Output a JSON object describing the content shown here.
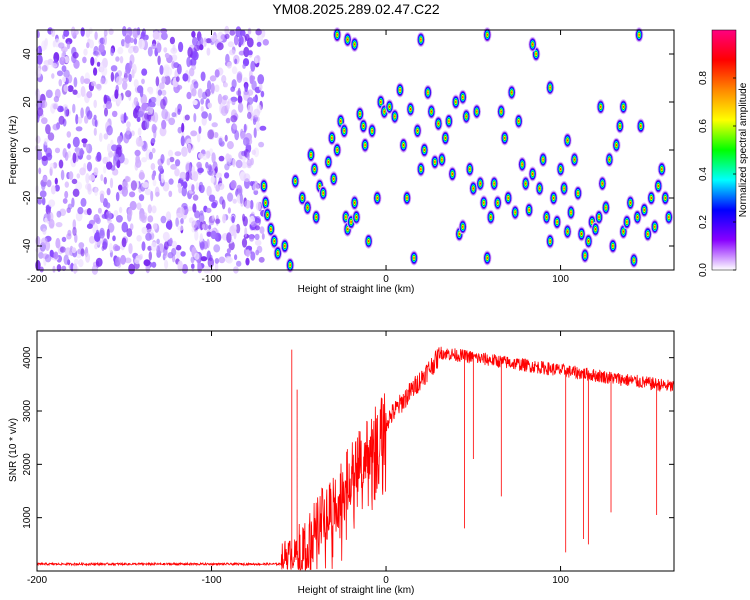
{
  "title": "YM08.2025.289.02.47.C22",
  "chart_data": [
    {
      "type": "heatmap",
      "xlabel": "Height of straight line (km)",
      "ylabel": "Frequency (Hz)",
      "xlim": [
        -200,
        165
      ],
      "ylim": [
        -50,
        50
      ],
      "xticks": [
        -200,
        -100,
        0,
        100
      ],
      "yticks": [
        -40,
        -20,
        0,
        20,
        40
      ],
      "colorbar": {
        "label": "Normalized spectral amplitude",
        "range": [
          0,
          1
        ],
        "ticks": [
          "0.0",
          "0.2",
          "0.4",
          "0.6",
          "0.8"
        ],
        "colors": [
          "#ffffff",
          "#8800ff",
          "#0000ff",
          "#00ffff",
          "#00ff00",
          "#ffff00",
          "#ff8800",
          "#ff0000",
          "#ff0080"
        ]
      },
      "noise_region": {
        "x_start": -200,
        "x_end": -72,
        "level": 0.15
      },
      "blobs": [
        [
          -70,
          -15
        ],
        [
          -69,
          -22
        ],
        [
          -68,
          -27
        ],
        [
          -66,
          -33
        ],
        [
          -64,
          -38
        ],
        [
          -62,
          -43
        ],
        [
          -58,
          -40
        ],
        [
          -55,
          -48
        ],
        [
          -52,
          -13
        ],
        [
          -48,
          -20
        ],
        [
          -45,
          -24
        ],
        [
          -43,
          -2
        ],
        [
          -41,
          -8
        ],
        [
          -40,
          -28
        ],
        [
          -38,
          -15
        ],
        [
          -36,
          -18
        ],
        [
          -33,
          -5
        ],
        [
          -31,
          5
        ],
        [
          -30,
          -12
        ],
        [
          -28,
          0
        ],
        [
          -26,
          12
        ],
        [
          -24,
          8
        ],
        [
          -23,
          -28
        ],
        [
          -22,
          -33
        ],
        [
          -20,
          -30
        ],
        [
          -18,
          -22
        ],
        [
          -17,
          -28
        ],
        [
          -15,
          15
        ],
        [
          -13,
          10
        ],
        [
          -12,
          2
        ],
        [
          -10,
          -38
        ],
        [
          -8,
          8
        ],
        [
          -5,
          -20
        ],
        [
          -3,
          20
        ],
        [
          -1,
          16
        ],
        [
          2,
          18
        ],
        [
          5,
          14
        ],
        [
          8,
          25
        ],
        [
          10,
          2
        ],
        [
          12,
          -20
        ],
        [
          14,
          17
        ],
        [
          16,
          -45
        ],
        [
          18,
          8
        ],
        [
          20,
          -8
        ],
        [
          22,
          0
        ],
        [
          24,
          24
        ],
        [
          26,
          16
        ],
        [
          28,
          -5
        ],
        [
          30,
          11
        ],
        [
          32,
          -4
        ],
        [
          34,
          5
        ],
        [
          36,
          12
        ],
        [
          38,
          -10
        ],
        [
          40,
          20
        ],
        [
          42,
          -35
        ],
        [
          44,
          -32
        ],
        [
          46,
          14
        ],
        [
          48,
          -8
        ],
        [
          50,
          -16
        ],
        [
          52,
          16
        ],
        [
          54,
          -14
        ],
        [
          56,
          -22
        ],
        [
          58,
          -45
        ],
        [
          60,
          -28
        ],
        [
          62,
          -14
        ],
        [
          64,
          -22
        ],
        [
          66,
          16
        ],
        [
          68,
          5
        ],
        [
          70,
          -20
        ],
        [
          72,
          24
        ],
        [
          74,
          -26
        ],
        [
          76,
          12
        ],
        [
          78,
          -6
        ],
        [
          80,
          -14
        ],
        [
          82,
          -25
        ],
        [
          84,
          -10
        ],
        [
          86,
          40
        ],
        [
          88,
          -16
        ],
        [
          90,
          -4
        ],
        [
          92,
          -28
        ],
        [
          94,
          -38
        ],
        [
          96,
          -20
        ],
        [
          98,
          -30
        ],
        [
          100,
          -8
        ],
        [
          102,
          -16
        ],
        [
          104,
          4
        ],
        [
          106,
          -26
        ],
        [
          108,
          -4
        ],
        [
          110,
          -18
        ],
        [
          112,
          -35
        ],
        [
          114,
          -44
        ],
        [
          116,
          -38
        ],
        [
          118,
          -30
        ],
        [
          120,
          -33
        ],
        [
          122,
          -28
        ],
        [
          124,
          -14
        ],
        [
          126,
          -24
        ],
        [
          128,
          -4
        ],
        [
          130,
          -40
        ],
        [
          132,
          2
        ],
        [
          134,
          10
        ],
        [
          136,
          -34
        ],
        [
          138,
          -30
        ],
        [
          140,
          -22
        ],
        [
          142,
          -46
        ],
        [
          144,
          -28
        ],
        [
          146,
          10
        ],
        [
          148,
          -25
        ],
        [
          150,
          -35
        ],
        [
          152,
          -20
        ],
        [
          154,
          -32
        ],
        [
          156,
          -15
        ],
        [
          158,
          -8
        ],
        [
          160,
          -20
        ],
        [
          162,
          -28
        ],
        [
          -28,
          48
        ],
        [
          -22,
          46
        ],
        [
          -18,
          44
        ],
        [
          58,
          48
        ],
        [
          84,
          44
        ],
        [
          145,
          48
        ],
        [
          20,
          46
        ],
        [
          44,
          22
        ],
        [
          94,
          26
        ],
        [
          123,
          18
        ],
        [
          104,
          -34
        ],
        [
          136,
          18
        ]
      ]
    },
    {
      "type": "line",
      "xlabel": "Height of straight line (km)",
      "ylabel": "SNR (10 * v/v)",
      "xlim": [
        -200,
        165
      ],
      "ylim": [
        0,
        4500
      ],
      "xticks": [
        -200,
        -100,
        0,
        100
      ],
      "yticks": [
        1000,
        2000,
        3000,
        4000
      ],
      "color": "#ff0000",
      "segments": [
        {
          "x_from": -200,
          "x_to": -60,
          "baseline": 130,
          "noise": 40
        },
        {
          "x_from": -60,
          "x_to": -50,
          "baseline": 300,
          "noise": 600
        },
        {
          "x_from": -50,
          "x_to": 0,
          "baseline_from": 300,
          "baseline_to": 2800,
          "noise": 1200
        },
        {
          "x_from": 0,
          "x_to": 30,
          "baseline_from": 2800,
          "baseline_to": 4000,
          "noise": 400
        },
        {
          "x_from": 30,
          "x_to": 165,
          "baseline_from": 4100,
          "baseline_to": 3450,
          "noise": 250
        }
      ],
      "spikes": [
        {
          "x": -54,
          "y": 4150
        },
        {
          "x": -51,
          "y": 3400
        },
        {
          "x": 45,
          "y": 800
        },
        {
          "x": 50,
          "y": 2100
        },
        {
          "x": 66,
          "y": 1400
        },
        {
          "x": 103,
          "y": 350
        },
        {
          "x": 113,
          "y": 600
        },
        {
          "x": 116,
          "y": 500
        },
        {
          "x": 129,
          "y": 1100
        },
        {
          "x": 155,
          "y": 1050
        }
      ]
    }
  ]
}
